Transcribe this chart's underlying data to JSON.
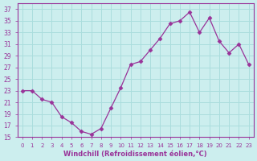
{
  "x": [
    0,
    1,
    2,
    3,
    4,
    5,
    6,
    7,
    8,
    9,
    10,
    11,
    12,
    13,
    14,
    15,
    16,
    17,
    18,
    19,
    20,
    21,
    22,
    23
  ],
  "y": [
    23,
    23,
    21.5,
    21,
    18.5,
    17.5,
    16,
    15.5,
    16.5,
    20,
    23.5,
    27.5,
    28,
    30,
    32,
    34.5,
    35,
    36.5,
    33,
    35.5,
    31.5,
    29.5,
    31,
    27.5
  ],
  "line_color": "#993399",
  "marker": "D",
  "marker_size": 2.5,
  "bg_color": "#cceeee",
  "grid_color": "#aadddd",
  "xlabel": "Windchill (Refroidissement éolien,°C)",
  "xlabel_color": "#993399",
  "tick_color": "#993399",
  "ylim": [
    15,
    38
  ],
  "xlim": [
    -0.5,
    23.5
  ],
  "yticks": [
    15,
    17,
    19,
    21,
    23,
    25,
    27,
    29,
    31,
    33,
    35,
    37
  ],
  "xticks": [
    0,
    1,
    2,
    3,
    4,
    5,
    6,
    7,
    8,
    9,
    10,
    11,
    12,
    13,
    14,
    15,
    16,
    17,
    18,
    19,
    20,
    21,
    22,
    23
  ]
}
